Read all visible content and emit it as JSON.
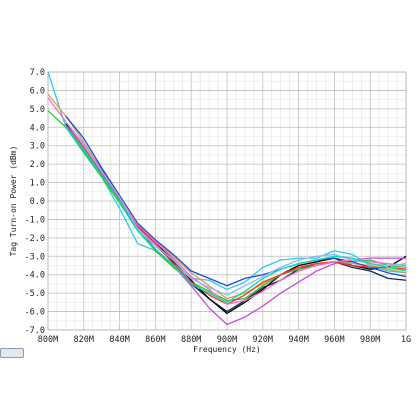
{
  "chart_data": {
    "type": "line",
    "title": "",
    "xlabel": "Frequency (Hz)",
    "ylabel": "Tag Turn-on Power (dBm)",
    "xlim": [
      800,
      1000
    ],
    "ylim": [
      -7,
      7
    ],
    "x": [
      800,
      810,
      820,
      830,
      840,
      850,
      860,
      870,
      880,
      890,
      900,
      910,
      920,
      930,
      940,
      950,
      960,
      970,
      980,
      990,
      1000
    ],
    "x_tick_labels": [
      "800M",
      "820M",
      "840M",
      "860M",
      "880M",
      "900M",
      "920M",
      "940M",
      "960M",
      "980M",
      "1G"
    ],
    "y_tick_labels": [
      "7.0",
      "6.0",
      "5.0",
      "4.0",
      "3.0",
      "2.0",
      "1.0",
      "0.0",
      "-1.0",
      "-2.0",
      "-3.0",
      "-4.0",
      "-5.0",
      "-6.0",
      "-7.0"
    ],
    "grid": true,
    "series": [
      {
        "color": "#0d2a5a",
        "values": [
          null,
          4.0,
          2.9,
          1.5,
          0.0,
          -1.5,
          -2.4,
          -3.3,
          -4.5,
          -5.3,
          -6.0,
          -5.4,
          -4.7,
          -4.3,
          -3.7,
          -3.4,
          -3.3,
          -3.6,
          -3.8,
          -4.2,
          -4.3
        ]
      },
      {
        "color": "#000000",
        "values": [
          null,
          4.2,
          3.1,
          1.6,
          0.2,
          -1.3,
          -2.3,
          -3.2,
          -4.3,
          -5.3,
          -6.1,
          -5.5,
          -4.8,
          -4.0,
          -3.5,
          -3.3,
          -3.1,
          -3.5,
          -3.7,
          -3.6,
          -3.0
        ]
      },
      {
        "color": "#32c8ee",
        "values": [
          7.0,
          4.0,
          2.6,
          1.3,
          -0.4,
          -2.3,
          -2.7,
          -3.4,
          -4.2,
          -4.3,
          -4.8,
          -4.4,
          -3.6,
          -3.2,
          -3.1,
          -3.1,
          -2.7,
          -2.9,
          -3.5,
          -3.8,
          -3.9
        ]
      },
      {
        "color": "#d8a23a",
        "values": [
          5.8,
          4.6,
          3.2,
          1.7,
          0.3,
          -1.2,
          -2.2,
          -3.0,
          -3.9,
          -4.6,
          -5.3,
          -5.0,
          -4.5,
          -4.0,
          -3.6,
          -3.4,
          -3.3,
          -3.4,
          -3.5,
          -3.7,
          -3.9
        ]
      },
      {
        "color": "#22cc22",
        "values": [
          4.9,
          4.0,
          2.7,
          1.3,
          -0.1,
          -1.6,
          -2.7,
          -3.6,
          -4.4,
          -4.9,
          -5.4,
          -5.3,
          -4.6,
          -4.0,
          -3.7,
          -3.5,
          -3.3,
          -3.3,
          -3.2,
          -3.5,
          -3.6
        ]
      },
      {
        "color": "#c84ad8",
        "values": [
          null,
          4.1,
          3.0,
          1.7,
          0.1,
          -1.4,
          -2.6,
          -3.5,
          -4.6,
          -5.8,
          -6.7,
          -6.3,
          -5.7,
          -5.0,
          -4.4,
          -3.8,
          -3.4,
          -3.2,
          -3.1,
          -3.1,
          -3.1
        ]
      },
      {
        "color": "#1f4bd8",
        "values": [
          null,
          4.6,
          3.4,
          1.8,
          0.3,
          -1.2,
          -2.1,
          -2.9,
          -3.8,
          -4.2,
          -4.6,
          -4.2,
          -4.0,
          -3.7,
          -3.4,
          -3.2,
          -3.1,
          -3.3,
          -3.6,
          -3.9,
          -4.1
        ]
      },
      {
        "color": "#ff3333",
        "values": [
          null,
          4.0,
          2.9,
          1.5,
          0.1,
          -1.4,
          -2.3,
          -3.4,
          -4.4,
          -5.1,
          -5.6,
          -5.1,
          -4.4,
          -4.0,
          -3.6,
          -3.4,
          -3.3,
          -3.5,
          -3.6,
          -3.6,
          -3.7
        ]
      },
      {
        "color": "#ff66cc",
        "values": [
          5.6,
          4.3,
          3.0,
          1.6,
          0.2,
          -1.3,
          -2.2,
          -3.1,
          -4.1,
          -4.8,
          -5.6,
          -5.4,
          -4.9,
          -4.3,
          -3.8,
          -3.5,
          -3.3,
          -3.2,
          -3.3,
          -3.4,
          -3.5
        ]
      },
      {
        "color": "#8fb6ff",
        "values": [
          null,
          4.3,
          3.1,
          1.6,
          0.2,
          -1.5,
          -2.4,
          -3.2,
          -4.2,
          -4.7,
          -5.1,
          -4.6,
          -4.1,
          -3.6,
          -3.2,
          -3.0,
          -2.9,
          -3.2,
          -3.4,
          -3.5,
          -3.4
        ]
      },
      {
        "color": "#00e0b0",
        "values": [
          null,
          4.0,
          2.8,
          1.4,
          0.0,
          -1.6,
          -2.6,
          -3.5,
          -4.5,
          -5.0,
          -5.5,
          -4.9,
          -4.2,
          -3.7,
          -3.4,
          -3.2,
          -3.0,
          -3.1,
          -3.4,
          -3.6,
          -3.8
        ]
      }
    ]
  }
}
